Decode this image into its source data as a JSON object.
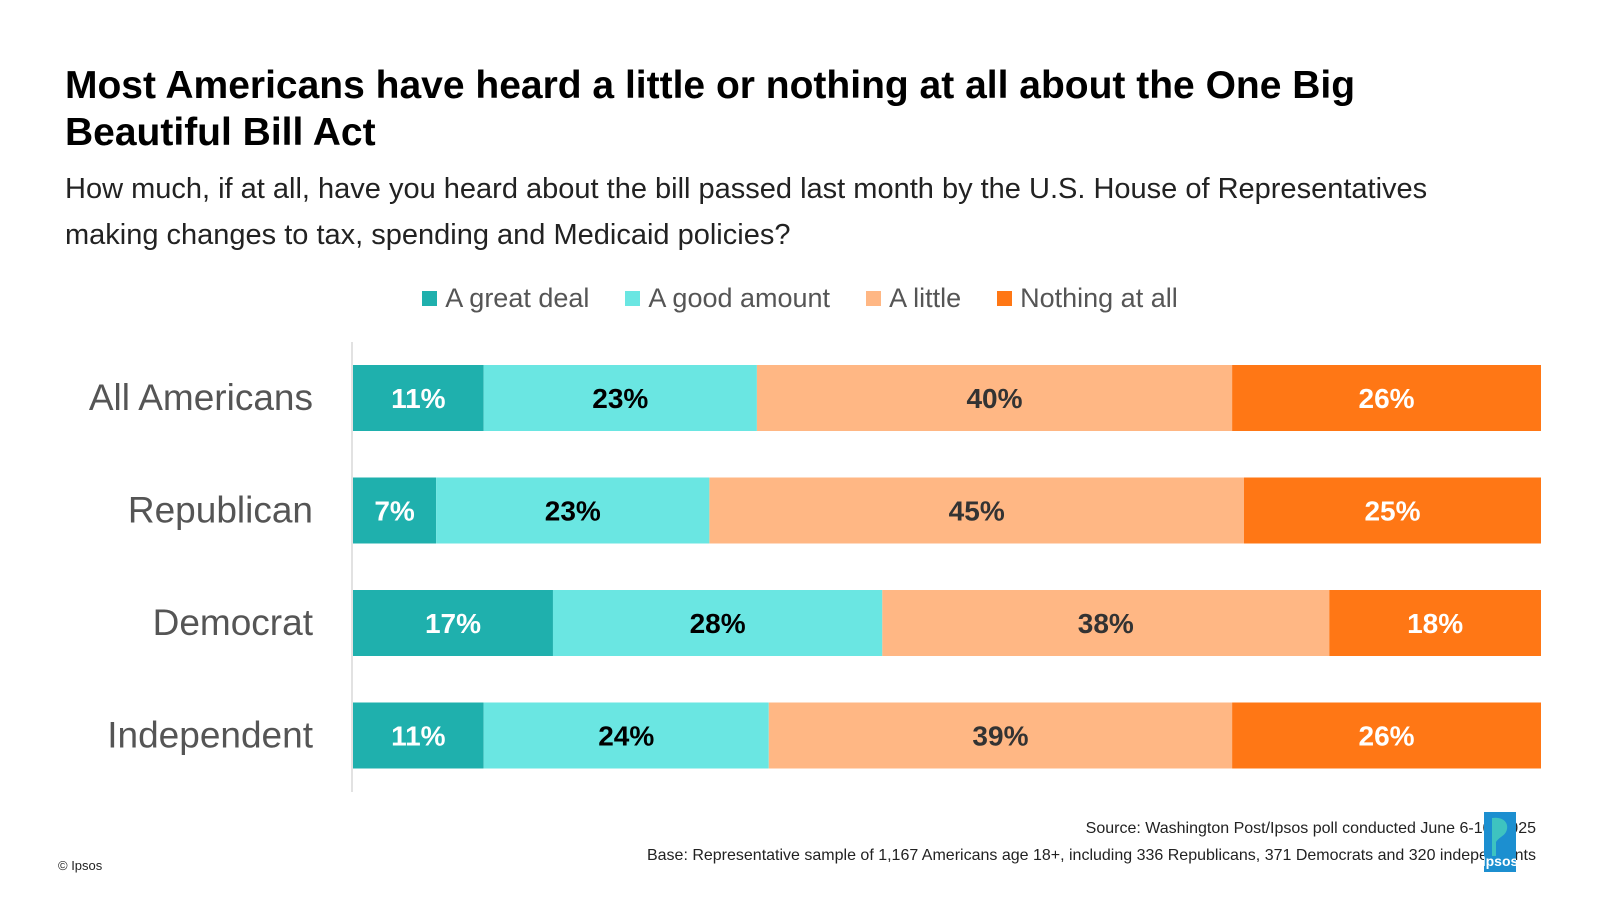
{
  "header": {
    "title": "Most Americans have heard a little or nothing at all about the One Big Beautiful Bill Act",
    "subtitle": "How much, if at all, have you heard about the bill passed last month by the U.S.  House of Representatives making changes to tax, spending and Medicaid policies?"
  },
  "chart_data": {
    "type": "bar",
    "orientation": "horizontal",
    "stacked": true,
    "categories": [
      "All Americans",
      "Republican",
      "Democrat",
      "Independent"
    ],
    "series": [
      {
        "name": "A great deal",
        "color": "#1fb0ad",
        "label_color": "#ffffff",
        "values": [
          11,
          7,
          17,
          11
        ]
      },
      {
        "name": "A good amount",
        "color": "#6ae6e2",
        "label_color": "#000000",
        "values": [
          23,
          23,
          28,
          24
        ]
      },
      {
        "name": "A little",
        "color": "#ffb784",
        "label_color": "#333333",
        "values": [
          40,
          45,
          38,
          39
        ]
      },
      {
        "name": "Nothing at all",
        "color": "#ff7715",
        "label_color": "#ffffff",
        "values": [
          26,
          25,
          18,
          26
        ]
      }
    ],
    "value_suffix": "%",
    "legend_position": "top",
    "grid": false
  },
  "footer": {
    "source": "Source: Washington Post/Ipsos poll conducted June 6-10, 2025",
    "base": "Base: Representative sample of  1,167 Americans age 18+, including 336 Republicans, 371 Democrats and 320 independents",
    "copyright": "© Ipsos"
  },
  "logo": {
    "text": "Ipsos",
    "color": "#1c8fd0"
  }
}
